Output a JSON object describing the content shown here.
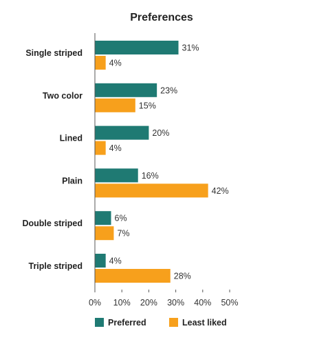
{
  "chart_data": {
    "type": "bar",
    "orientation": "horizontal",
    "title": "Preferences",
    "categories": [
      "Single striped",
      "Two color",
      "Lined",
      "Plain",
      "Double striped",
      "Triple striped"
    ],
    "series": [
      {
        "name": "Preferred",
        "color": "#1f7a73",
        "values": [
          31,
          23,
          20,
          16,
          6,
          4
        ]
      },
      {
        "name": "Least liked",
        "color": "#f7a01c",
        "values": [
          4,
          15,
          4,
          42,
          7,
          28
        ]
      }
    ],
    "xlim": [
      0,
      50
    ],
    "xticks": [
      0,
      10,
      20,
      30,
      40,
      50
    ],
    "value_suffix": "%",
    "grid": false,
    "legend_position": "bottom"
  }
}
